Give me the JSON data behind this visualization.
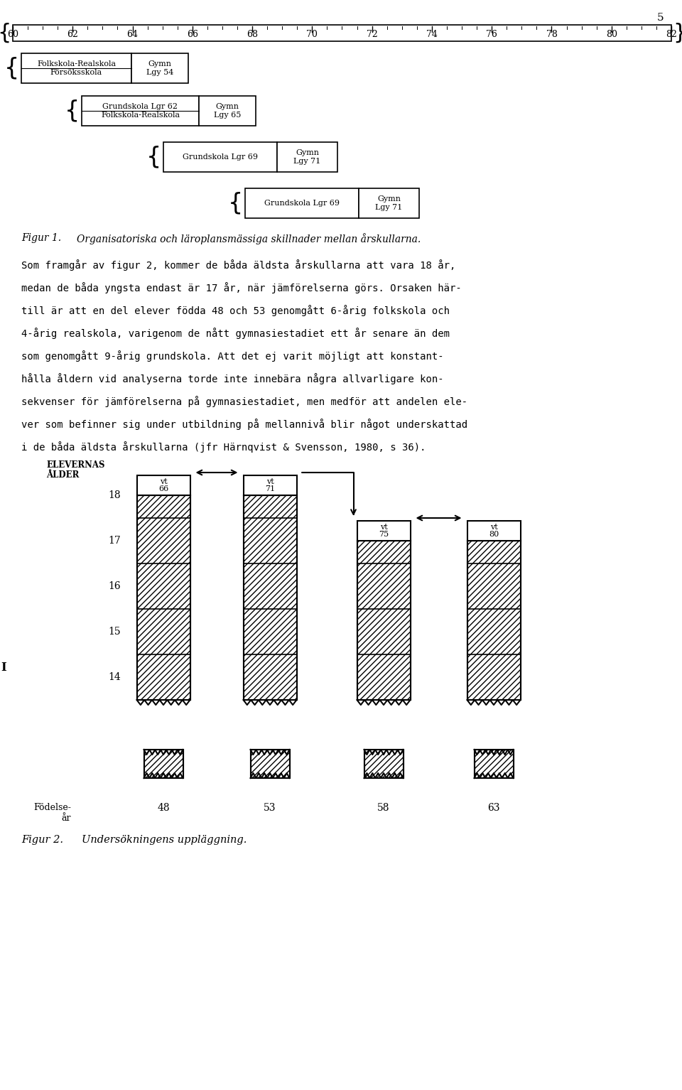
{
  "page_number": "5",
  "ruler_ticks": [
    60,
    62,
    64,
    66,
    68,
    70,
    72,
    74,
    76,
    78,
    80,
    82
  ],
  "fig1_caption_num": "Figur 1.",
  "fig1_caption_text": "Organisatoriska och läroplansmässiga skillnader mellan årskullarna.",
  "fig2_caption_num": "Figur 2.",
  "fig2_caption_text": "Undersökningens uppläggning.",
  "body_text": [
    "Som framgår av figur 2, kommer de båda äldsta årskullarna att vara 18 år,",
    "medan de båda yngsta endast är 17 år, när jämförelserna görs. Orsaken här-",
    "till är att en del elever födda 48 och 53 genomgått 6-årig folkskola och",
    "4-årig realskola, varigenom de nått gymnasiestadiet ett år senare än dem",
    "som genomgått 9-årig grundskola. Att det ej varit möjligt att konstant-",
    "hålla åldern vid analyserna torde inte innebära några allvarligare kon-",
    "sekvenser för jämförelserna på gymnasiestadiet, men medför att andelen ele-",
    "ver som befinner sig under utbildning på mellannivå blir något underskattad",
    "i de båda äldsta årskullarna (jfr Härnqvist & Svensson, 1980, s 36)."
  ],
  "fig2_bar_labels": [
    "vt\n66",
    "vt\n71",
    "vt\n75",
    "vt\n80"
  ],
  "fig2_bar_tops": [
    18,
    18,
    17,
    17
  ],
  "fig2_birth_years": [
    "48",
    "53",
    "58",
    "63"
  ],
  "fig2_age_labels": [
    14,
    15,
    16,
    17,
    18
  ],
  "background_color": "#ffffff",
  "text_color": "#000000"
}
